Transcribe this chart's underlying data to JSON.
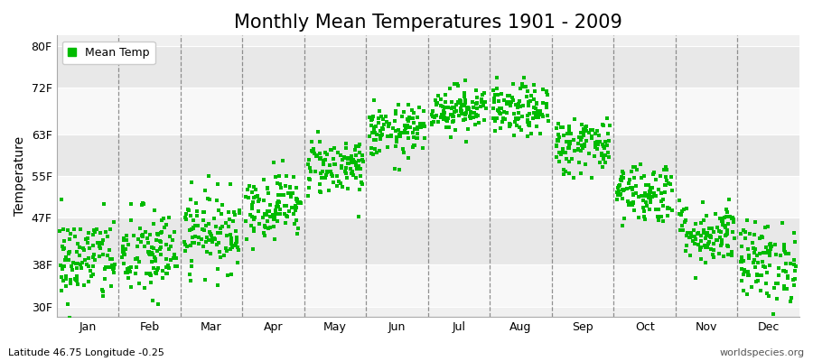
{
  "title": "Monthly Mean Temperatures 1901 - 2009",
  "ylabel": "Temperature",
  "xlabel": "",
  "subtitle_left": "Latitude 46.75 Longitude -0.25",
  "subtitle_right": "worldspecies.org",
  "ytick_labels": [
    "30F",
    "38F",
    "47F",
    "55F",
    "63F",
    "72F",
    "80F"
  ],
  "ytick_values": [
    30,
    38,
    47,
    55,
    63,
    72,
    80
  ],
  "ylim": [
    28,
    82
  ],
  "month_labels": [
    "Jan",
    "Feb",
    "Mar",
    "Apr",
    "May",
    "Jun",
    "Jul",
    "Aug",
    "Sep",
    "Oct",
    "Nov",
    "Dec"
  ],
  "dot_color": "#00bb00",
  "dot_size": 5,
  "background_color": "#ffffff",
  "plot_bg_color": "#f0f0f0",
  "band_light": "#f8f8f8",
  "band_dark": "#e8e8e8",
  "legend_label": "Mean Temp",
  "num_years": 109,
  "start_year": 1901,
  "end_year": 2009,
  "mean_temps_f": [
    39.0,
    40.0,
    44.5,
    49.5,
    57.0,
    63.5,
    68.0,
    67.5,
    61.0,
    52.0,
    44.0,
    38.5
  ],
  "std_temps_f": [
    4.2,
    4.5,
    3.8,
    3.2,
    2.8,
    2.5,
    2.2,
    2.5,
    2.8,
    3.0,
    3.0,
    3.8
  ],
  "title_fontsize": 15,
  "axis_label_fontsize": 10,
  "tick_fontsize": 9,
  "subtitle_fontsize": 8,
  "vline_color": "#777777",
  "vline_alpha": 0.8
}
